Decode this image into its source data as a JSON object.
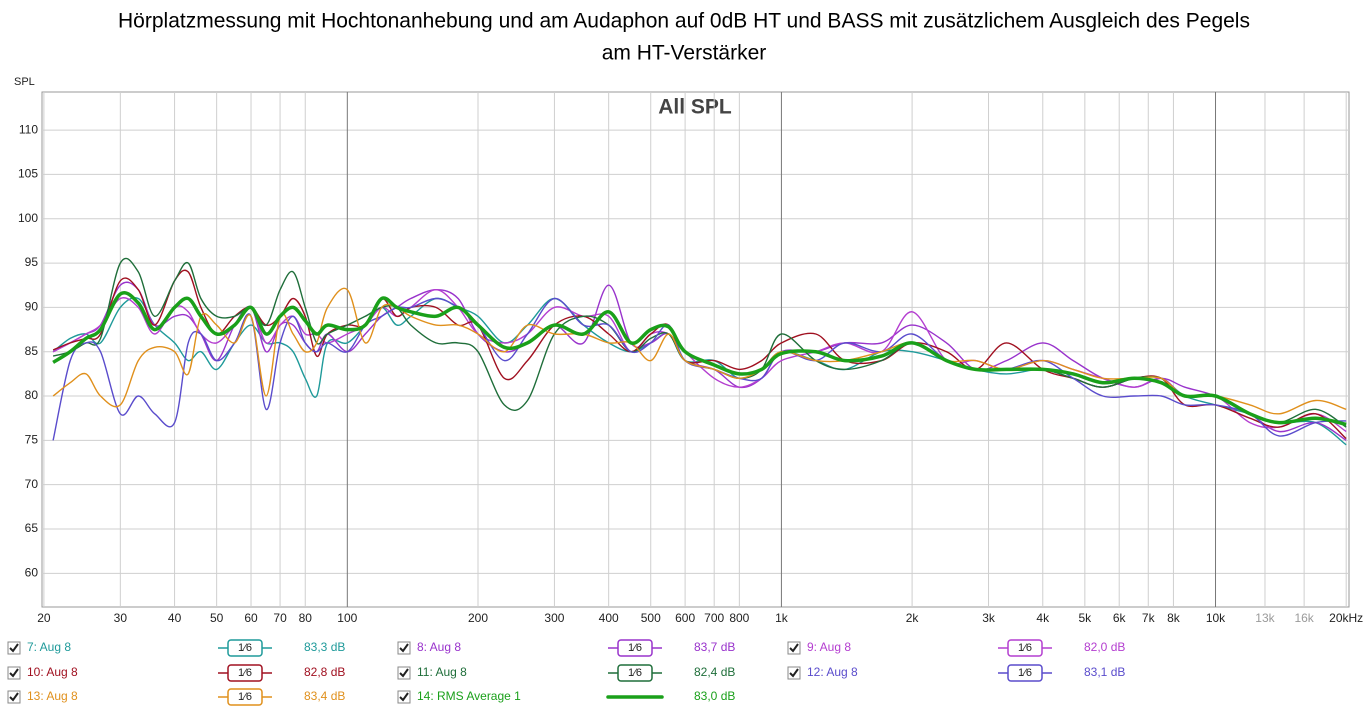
{
  "chart_data": {
    "type": "line",
    "title": [
      "Hörplatzmessung mit Hochtonanhebung und am Audaphon auf 0dB HT und BASS mit zusätzlichem Ausgleich des Pegels",
      "am HT-Verstärker"
    ],
    "subtitle": "All SPL",
    "ylabel": "SPL",
    "log_x": true,
    "grid": true,
    "xlim": [
      19.8,
      20300
    ],
    "ylim": [
      56.2,
      114.3
    ],
    "yticks": [
      60,
      65,
      70,
      75,
      80,
      85,
      90,
      95,
      100,
      105,
      110
    ],
    "xticks": [
      20,
      30,
      40,
      50,
      60,
      70,
      80,
      100,
      200,
      300,
      400,
      500,
      600,
      700,
      800,
      {
        "value": 1000,
        "label": "1k"
      },
      {
        "value": 2000,
        "label": "2k"
      },
      {
        "value": 3000,
        "label": "3k"
      },
      {
        "value": 4000,
        "label": "4k"
      },
      {
        "value": 5000,
        "label": "5k"
      },
      {
        "value": 6000,
        "label": "6k"
      },
      {
        "value": 7000,
        "label": "7k"
      },
      {
        "value": 8000,
        "label": "8k"
      },
      {
        "value": 10000,
        "label": "10k"
      },
      {
        "value": 13000,
        "label": "13k",
        "color": "#9a9a9a"
      },
      {
        "value": 16000,
        "label": "16k",
        "color": "#9a9a9a"
      },
      {
        "value": 20000,
        "label": "20kHz"
      }
    ],
    "x": [
      21,
      23,
      25,
      27,
      30,
      33,
      36,
      40,
      43,
      46,
      50,
      55,
      60,
      65,
      70,
      75,
      80,
      85,
      90,
      100,
      110,
      120,
      130,
      140,
      160,
      180,
      200,
      230,
      260,
      300,
      350,
      400,
      450,
      500,
      550,
      600,
      700,
      800,
      900,
      1000,
      1200,
      1400,
      1700,
      2000,
      2400,
      2800,
      3300,
      4000,
      4700,
      5500,
      6500,
      7500,
      8500,
      10000,
      12000,
      14000,
      17000,
      20000
    ],
    "series": [
      {
        "name": "7: Aug 8",
        "color": "#1f9a9a",
        "smoothing": "1⁄6",
        "level": "83,3 dB",
        "values": [
          85,
          86.5,
          87,
          86,
          90,
          91,
          88,
          86,
          84,
          85,
          83,
          86,
          88,
          86,
          86,
          85,
          82,
          80,
          86,
          86,
          88,
          90,
          88,
          89,
          91,
          90,
          89,
          86,
          88,
          91,
          88,
          86,
          85,
          86,
          87,
          84,
          84,
          82,
          83,
          85,
          84,
          83,
          85,
          85,
          84,
          83,
          82.5,
          83,
          82,
          81,
          82,
          82,
          80,
          79,
          78,
          77,
          77,
          74.5
        ]
      },
      {
        "name": "8: Aug 8",
        "color": "#9933cc",
        "smoothing": "1⁄6",
        "level": "83,7 dB",
        "values": [
          85,
          86,
          87,
          88,
          92.5,
          92,
          88,
          89,
          89,
          87,
          84,
          88,
          90,
          85,
          88,
          88,
          86,
          85,
          87,
          85,
          87,
          89,
          90,
          91,
          92,
          91,
          87,
          85,
          86,
          88,
          86,
          92.5,
          86,
          86,
          87,
          84,
          83,
          81,
          82,
          85,
          85,
          86,
          86,
          88,
          86,
          83,
          84,
          86,
          84,
          82,
          81,
          82,
          81,
          80,
          78,
          76,
          77,
          75
        ]
      },
      {
        "name": "9: Aug 8",
        "color": "#b43ed0",
        "smoothing": "1⁄6",
        "level": "82,0 dB",
        "values": [
          85,
          86,
          87,
          88,
          91,
          90,
          87,
          90,
          89.5,
          87,
          86,
          88,
          90,
          86,
          88,
          89,
          87,
          87,
          86,
          87,
          88,
          90,
          89,
          90,
          92,
          90,
          87,
          86,
          87,
          90,
          89,
          89,
          85,
          87,
          87,
          85,
          82,
          81,
          82,
          84,
          85,
          86,
          85,
          89.5,
          84,
          84,
          83,
          84,
          83,
          82,
          81,
          82,
          80,
          80,
          77,
          76.5,
          78,
          76
        ]
      },
      {
        "name": "10: Aug 8",
        "color": "#a01020",
        "smoothing": "1⁄6",
        "level": "82,8 dB",
        "values": [
          85.2,
          86,
          86.5,
          87,
          93,
          92,
          88,
          93,
          94,
          90,
          87,
          89,
          90,
          88,
          89,
          91,
          89,
          84.5,
          87,
          88,
          88,
          91,
          89,
          90,
          90,
          88,
          88,
          82,
          84,
          88,
          89,
          87,
          85,
          87,
          88,
          84,
          84,
          83,
          84,
          86,
          87,
          84,
          84,
          86,
          85,
          83,
          86,
          83,
          82,
          81,
          82,
          82,
          79,
          79,
          77.5,
          76.5,
          78,
          75.2
        ]
      },
      {
        "name": "11: Aug 8",
        "color": "#1f6e3a",
        "smoothing": "1⁄6",
        "level": "82,4 dB",
        "values": [
          84.5,
          85,
          86,
          86.5,
          95,
          94,
          89,
          93,
          95,
          91,
          89,
          89,
          90,
          88,
          92,
          94,
          90,
          86,
          87,
          88,
          89,
          90,
          90,
          88,
          86,
          86,
          85,
          79,
          79.5,
          87,
          89,
          88,
          85,
          86.5,
          87,
          84,
          83,
          82,
          83,
          87,
          84,
          83,
          84,
          86,
          84,
          83,
          83,
          83,
          82,
          81,
          82,
          82,
          80,
          80,
          78,
          77,
          78.5,
          76.5
        ]
      },
      {
        "name": "12: Aug 8",
        "color": "#5a4ccc",
        "smoothing": "1⁄6",
        "level": "83,1 dB",
        "values": [
          75,
          84,
          86,
          85,
          78,
          80,
          78,
          77,
          86,
          87,
          84,
          86,
          89,
          78.5,
          86,
          89,
          86,
          85,
          86,
          85,
          88,
          89,
          90,
          90,
          91,
          90,
          88,
          84,
          87,
          91,
          88,
          88,
          85,
          86,
          88,
          84,
          83,
          82,
          82,
          85,
          84,
          86,
          85,
          87,
          84,
          83,
          83,
          84,
          82,
          80,
          80,
          80,
          79,
          79,
          78,
          75.5,
          77,
          77.2
        ]
      },
      {
        "name": "13: Aug 8",
        "color": "#e0901c",
        "smoothing": "1⁄6",
        "level": "83,4 dB",
        "values": [
          80,
          81.5,
          82.5,
          80,
          79,
          84,
          85.5,
          85,
          82.5,
          89,
          88,
          86,
          89,
          80,
          89,
          87,
          85,
          86,
          90,
          92,
          86,
          90,
          90,
          89,
          88,
          88,
          87,
          85,
          88,
          87,
          87,
          86,
          86,
          84,
          87,
          84,
          83,
          82,
          83,
          85,
          84,
          84,
          85,
          86,
          84,
          84,
          83,
          84,
          83,
          82,
          82,
          82,
          80,
          80,
          79,
          78,
          79.5,
          78.5
        ]
      },
      {
        "name": "14: RMS Average 1",
        "color": "#1aa01a",
        "width": 3.5,
        "level": "83,0 dB",
        "values": [
          83.8,
          85,
          86.5,
          87.5,
          91.5,
          90.5,
          87.5,
          90,
          91,
          89,
          87,
          88,
          90,
          87,
          89,
          90,
          88.5,
          87,
          88,
          87.5,
          88,
          91,
          90,
          89.5,
          89,
          90,
          88,
          85.5,
          86,
          88,
          87,
          89.5,
          86,
          87.5,
          87.8,
          85,
          83.5,
          82.5,
          83,
          84.8,
          85,
          84,
          84.5,
          86,
          84,
          83,
          83,
          83,
          82.5,
          81.5,
          82,
          81.5,
          80,
          80,
          78,
          77,
          77.5,
          76.8
        ]
      }
    ]
  }
}
